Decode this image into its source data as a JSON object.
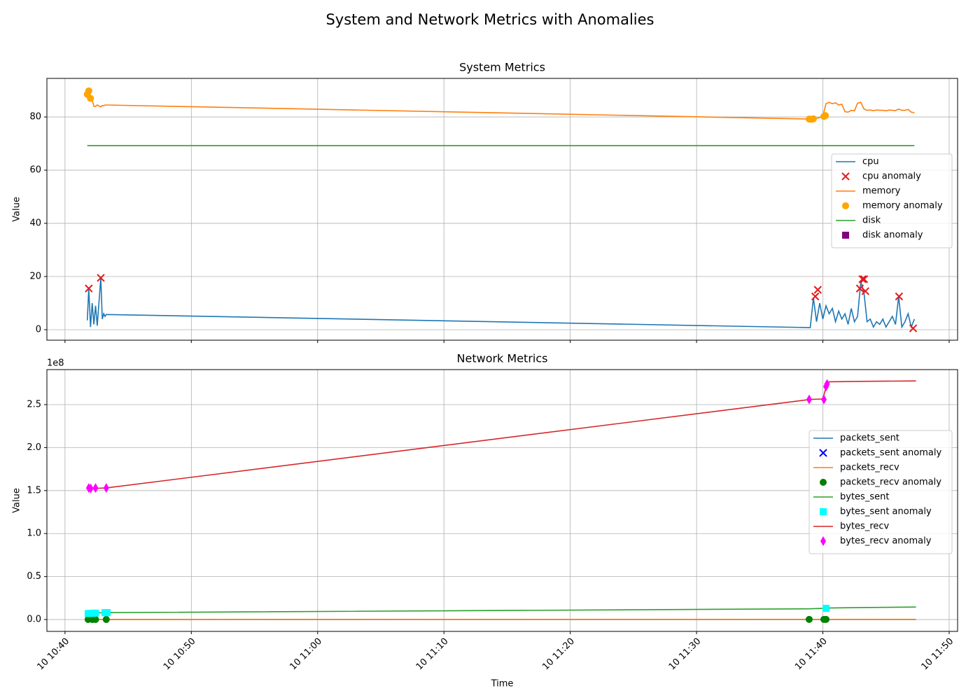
{
  "title": "System and Network Metrics with Anomalies",
  "chart_data": [
    {
      "type": "line",
      "title": "System Metrics",
      "ylabel": "Value",
      "legend": "center right",
      "grid": true,
      "xtick_labels": false,
      "xlim": [
        "10 10:38:34",
        "10 11:50:40"
      ],
      "xticks": [
        "10 10:40",
        "10 10:50",
        "10 11:00",
        "10 11:10",
        "10 11:20",
        "10 11:30",
        "10 11:40",
        "10 11:50"
      ],
      "ylim": [
        -3.95,
        94.5
      ],
      "yticks": [
        0,
        20,
        40,
        60,
        80
      ],
      "x": [
        "10 10:41:46",
        "10 10:41:53",
        "10 10:42:01",
        "10 10:42:09",
        "10 10:42:17",
        "10 10:42:25",
        "10 10:42:33",
        "10 10:42:50",
        "10 10:42:57",
        "10 10:43:04",
        "10 10:43:10",
        "10 10:43:16",
        "10 11:39:00",
        "10 11:39:15",
        "10 11:39:30",
        "10 11:39:45",
        "10 11:40:00",
        "10 11:40:15",
        "10 11:40:30",
        "10 11:40:45",
        "10 11:41:00",
        "10 11:41:15",
        "10 11:41:30",
        "10 11:41:45",
        "10 11:42:00",
        "10 11:42:15",
        "10 11:42:30",
        "10 11:42:45",
        "10 11:43:00",
        "10 11:43:15",
        "10 11:43:30",
        "10 11:43:45",
        "10 11:44:00",
        "10 11:44:15",
        "10 11:44:30",
        "10 11:44:45",
        "10 11:45:00",
        "10 11:45:15",
        "10 11:45:30",
        "10 11:45:45",
        "10 11:46:00",
        "10 11:46:15",
        "10 11:46:30",
        "10 11:46:45",
        "10 11:47:00",
        "10 11:47:15"
      ],
      "series": [
        {
          "name": "cpu",
          "color": "#1f77b4",
          "values": [
            3.5,
            15.5,
            1,
            10,
            2,
            9,
            1.5,
            19.5,
            4,
            6,
            5,
            5.7,
            0.8,
            12,
            3,
            10,
            4,
            9,
            6,
            8,
            3,
            7,
            4,
            6,
            2,
            8,
            3,
            5,
            18,
            14,
            3,
            4,
            1,
            3,
            2,
            4,
            1,
            3,
            5,
            2,
            12.5,
            1,
            3,
            6,
            1,
            4
          ]
        },
        {
          "name": "cpu anomaly",
          "color": "#e41a1c",
          "marker": "x",
          "x": [
            "10 10:41:53",
            "10 10:42:50",
            "10 11:39:24",
            "10 11:39:36",
            "10 11:42:56",
            "10 11:43:08",
            "10 11:43:16",
            "10 11:43:22",
            "10 11:46:02",
            "10 11:47:09"
          ],
          "values": [
            15.5,
            19.5,
            12.5,
            15,
            15.5,
            19,
            19,
            14.5,
            12.5,
            0.5
          ]
        },
        {
          "name": "memory",
          "color": "#ff7f0e",
          "values": [
            88.5,
            89.8,
            87,
            86.5,
            84,
            84,
            84.5,
            83.8,
            84.3,
            84.2,
            84.5,
            84.5,
            79.2,
            79.3,
            79.5,
            79.8,
            80.2,
            85,
            85.5,
            85,
            85.3,
            84.5,
            84.8,
            82,
            81.8,
            82.5,
            82.3,
            85.2,
            85.5,
            83,
            82.5,
            82.6,
            82.4,
            82.6,
            82.5,
            82.5,
            82.3,
            82.6,
            82.5,
            82.4,
            83,
            82.5,
            82.5,
            82.8,
            81.8,
            81.6
          ]
        },
        {
          "name": "memory anomaly",
          "color": "#ffa500",
          "marker": "o",
          "x": [
            "10 10:41:46",
            "10 10:41:53",
            "10 10:42:01",
            "10 11:38:55",
            "10 11:39:05",
            "10 11:39:15",
            "10 11:40:05",
            "10 11:40:12"
          ],
          "values": [
            88.5,
            89.8,
            87,
            79.2,
            79.1,
            79.3,
            80.2,
            80.5
          ]
        },
        {
          "name": "disk",
          "color": "#2ca02c",
          "values": [
            69.2,
            69.2,
            69.2,
            69.2,
            69.2,
            69.2,
            69.2,
            69.2,
            69.2,
            69.2,
            69.2,
            69.2,
            69.2,
            69.2,
            69.2,
            69.2,
            69.2,
            69.2,
            69.2,
            69.2,
            69.2,
            69.2,
            69.2,
            69.2,
            69.2,
            69.2,
            69.2,
            69.2,
            69.2,
            69.2,
            69.2,
            69.2,
            69.2,
            69.2,
            69.2,
            69.2,
            69.2,
            69.2,
            69.2,
            69.2,
            69.2,
            69.2,
            69.2,
            69.2,
            69.2,
            69.2
          ]
        },
        {
          "name": "disk anomaly",
          "color": "#800080",
          "marker": "s",
          "x": [],
          "values": []
        }
      ]
    },
    {
      "type": "line",
      "title": "Network Metrics",
      "ylabel": "Value",
      "xlabel": "Time",
      "y_offset_label": "1e8",
      "legend": "center right",
      "grid": true,
      "xtick_labels": true,
      "xlim": [
        "10 10:38:34",
        "10 11:50:40"
      ],
      "xticks": [
        "10 10:40",
        "10 10:50",
        "10 11:00",
        "10 11:10",
        "10 11:20",
        "10 11:30",
        "10 11:40",
        "10 11:50"
      ],
      "ylim": [
        -13800000,
        290700000
      ],
      "yticks": [
        {
          "value": 0,
          "label": "0.0"
        },
        {
          "value": 50000000,
          "label": "0.5"
        },
        {
          "value": 100000000,
          "label": "1.0"
        },
        {
          "value": 150000000,
          "label": "1.5"
        },
        {
          "value": 200000000,
          "label": "2.0"
        },
        {
          "value": 250000000,
          "label": "2.5"
        }
      ],
      "x": [
        "10 10:41:46",
        "10 10:42:20",
        "10 10:43:16",
        "10 11:39:00",
        "10 11:40:00",
        "10 11:40:15",
        "10 11:40:30",
        "10 11:43:00",
        "10 11:47:22"
      ],
      "series": [
        {
          "name": "packets_sent",
          "color": "#1f77b4",
          "values": [
            50000,
            52000,
            54000,
            90000,
            91000,
            92000,
            93000,
            95000,
            97000
          ]
        },
        {
          "name": "packets_sent anomaly",
          "color": "#0000ff",
          "marker": "x",
          "x": [],
          "values": []
        },
        {
          "name": "packets_recv",
          "color": "#ff7f0e",
          "values": [
            100000,
            102000,
            104000,
            180000,
            181000,
            182000,
            183000,
            186000,
            190000
          ]
        },
        {
          "name": "packets_recv anomaly",
          "color": "#008000",
          "marker": "o",
          "x": [
            "10 10:41:50",
            "10 10:42:10",
            "10 10:42:25",
            "10 10:43:16",
            "10 11:38:55",
            "10 11:40:05",
            "10 11:40:15"
          ],
          "values": [
            100000,
            101000,
            102000,
            104000,
            180000,
            181000,
            182000
          ]
        },
        {
          "name": "bytes_sent",
          "color": "#2ca02c",
          "values": [
            7000000,
            7500000,
            8000000,
            12500000,
            13000000,
            13200000,
            13400000,
            14000000,
            14500000
          ]
        },
        {
          "name": "bytes_sent anomaly",
          "color": "#00ffff",
          "marker": "s",
          "x": [
            "10 10:41:50",
            "10 10:42:00",
            "10 10:42:10",
            "10 10:42:25",
            "10 10:43:10",
            "10 10:43:20",
            "10 11:40:15"
          ],
          "values": [
            7000000,
            7100000,
            7200000,
            7500000,
            8000000,
            8000000,
            13000000
          ]
        },
        {
          "name": "bytes_recv",
          "color": "#d62728",
          "values": [
            152000000,
            152500000,
            153000000,
            256000000,
            256500000,
            270000000,
            276500000,
            277000000,
            277500000
          ]
        },
        {
          "name": "bytes_recv anomaly",
          "color": "#ff00ff",
          "marker": "d",
          "x": [
            "10 10:41:53",
            "10 10:42:02",
            "10 10:42:25",
            "10 10:43:16",
            "10 11:38:55",
            "10 11:40:05",
            "10 11:40:15",
            "10 11:40:20"
          ],
          "values": [
            153000000,
            152500000,
            153000000,
            153000000,
            256000000,
            256000000,
            271000000,
            274000000
          ]
        }
      ]
    }
  ]
}
